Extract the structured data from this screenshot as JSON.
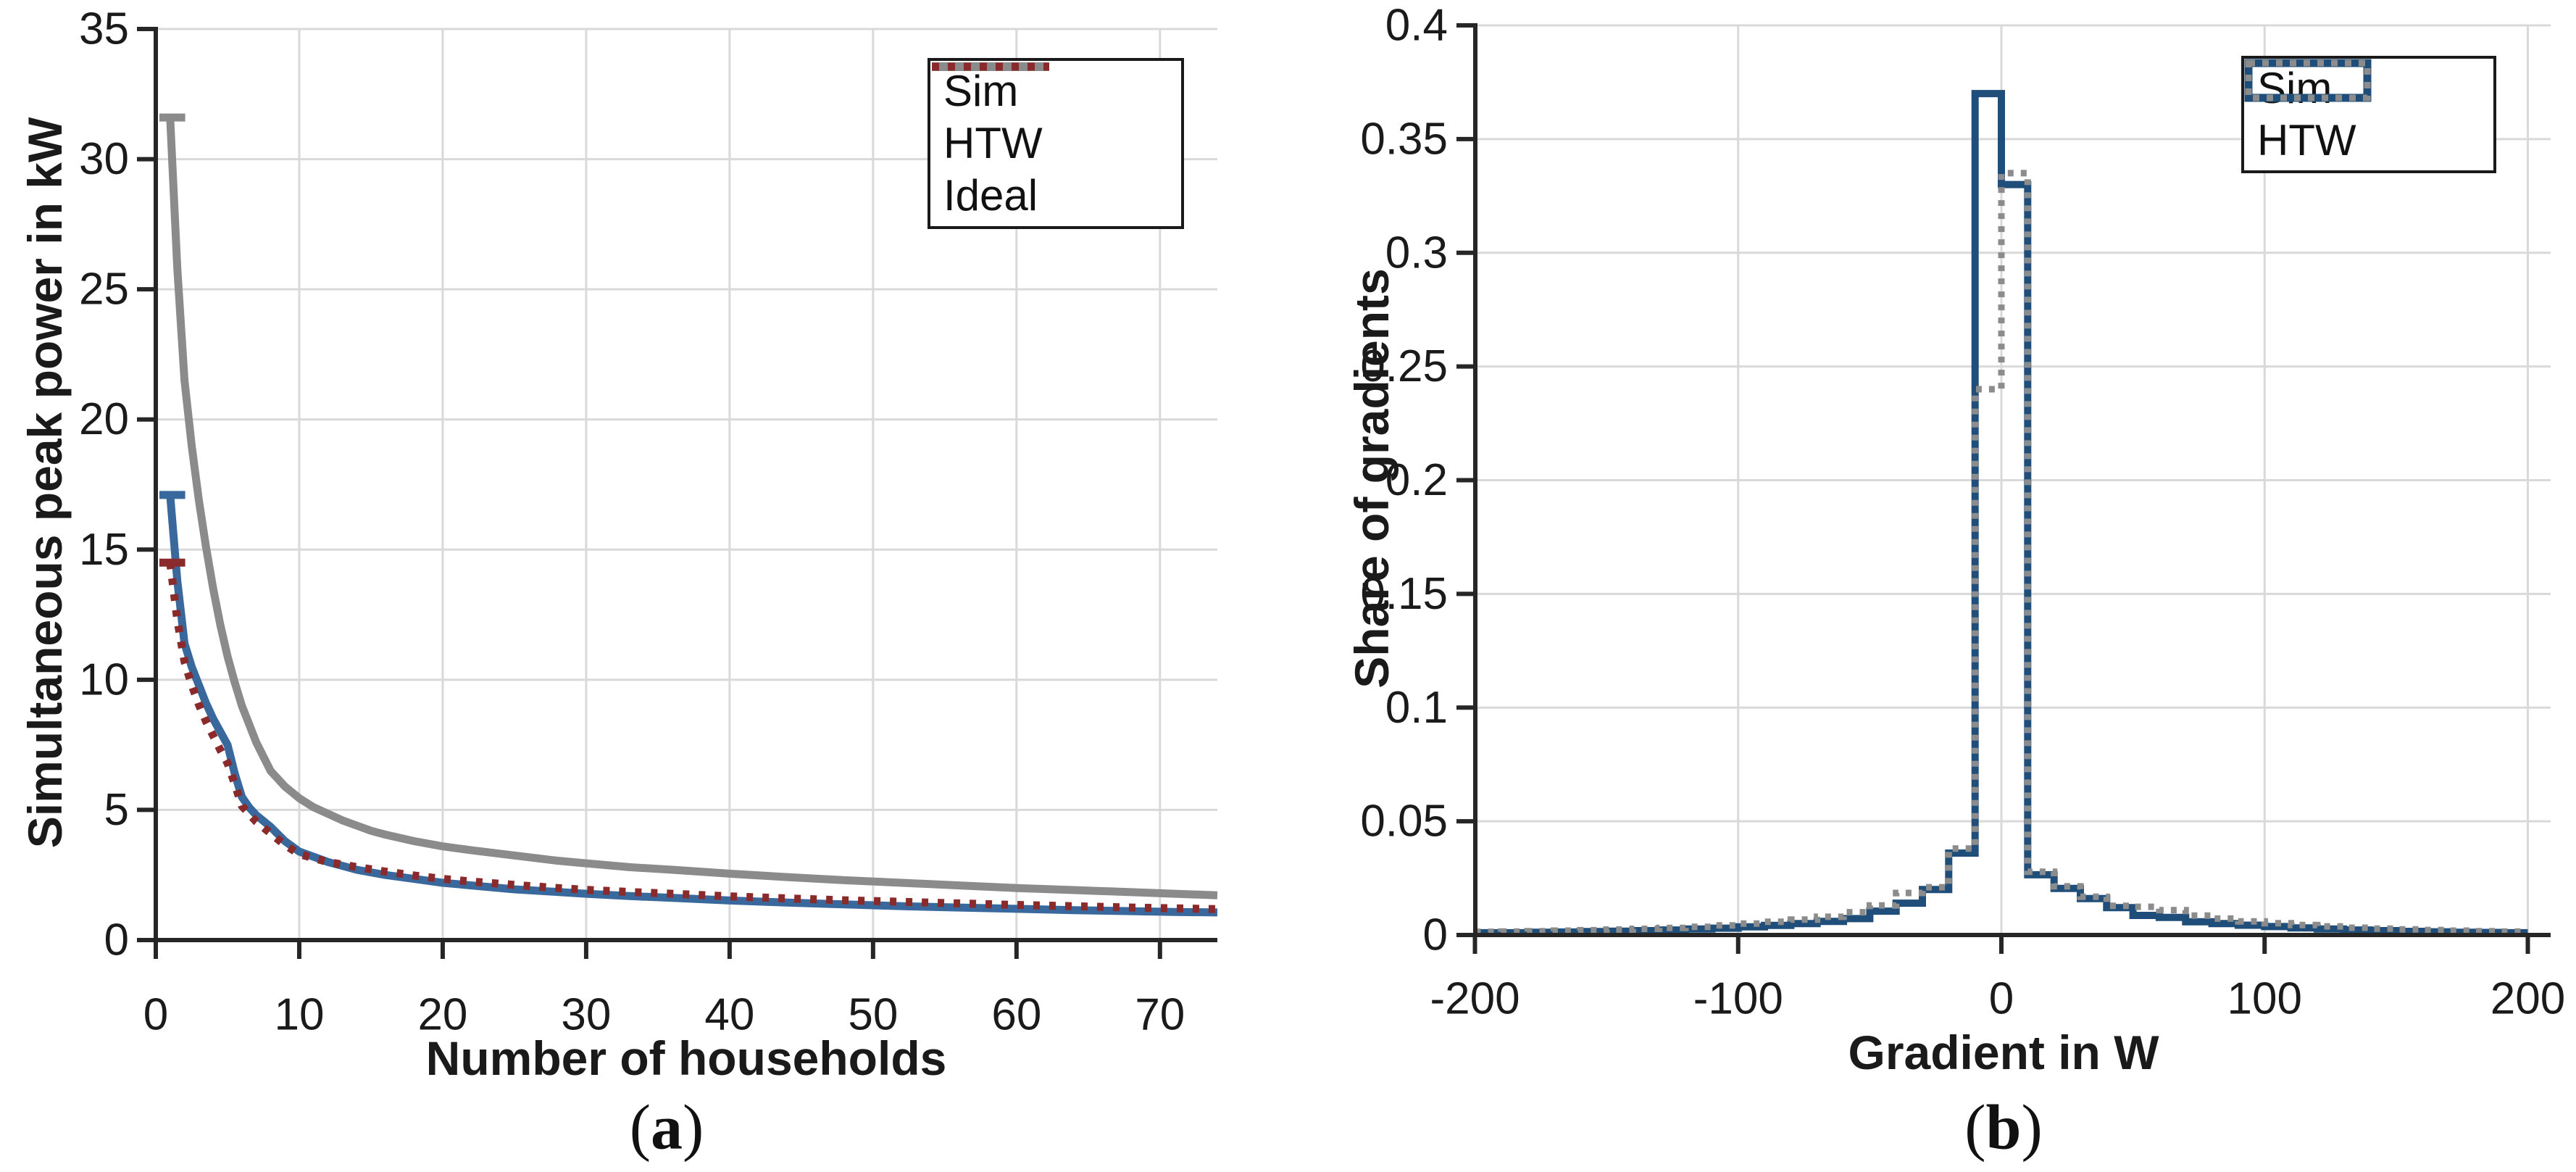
{
  "figure": {
    "background": "#ffffff",
    "grid_color": "#d9d9d9",
    "axis_color": "#262626",
    "text_color": "#1a1a1a",
    "legend_border_color": "#1a1a1a"
  },
  "chart_data": [
    {
      "id": "a",
      "type": "line",
      "title": "",
      "xlabel": "Number of households",
      "ylabel": "Simultaneous peak power in kW",
      "caption": {
        "open": "(",
        "letter": "a",
        "close": ")"
      },
      "xlim": [
        0,
        74
      ],
      "ylim": [
        0,
        35
      ],
      "xticks": [
        0,
        10,
        20,
        30,
        40,
        50,
        60,
        70
      ],
      "yticks": [
        0,
        5,
        10,
        15,
        20,
        25,
        30,
        35
      ],
      "ytick_labels": [
        "0",
        "5",
        "10",
        "15",
        "20",
        "25",
        "30",
        "35"
      ],
      "grid": true,
      "legend_position": "top-right-inside",
      "x": [
        1,
        1.5,
        2,
        2.5,
        3,
        3.5,
        4,
        4.5,
        5,
        5.5,
        6,
        6.5,
        7,
        8,
        9,
        10,
        11,
        12,
        13,
        14,
        15,
        16,
        18,
        20,
        22,
        25,
        28,
        30,
        33,
        36,
        40,
        44,
        48,
        52,
        56,
        60,
        64,
        68,
        71,
        74
      ],
      "series": [
        {
          "name": "Sim",
          "color": "#39689D",
          "style": "solid",
          "start_cap": true,
          "values": [
            17.1,
            13.8,
            11.4,
            10.5,
            9.8,
            9.1,
            8.5,
            8.0,
            7.5,
            6.4,
            5.5,
            5.1,
            4.8,
            4.35,
            3.8,
            3.4,
            3.2,
            3.0,
            2.85,
            2.7,
            2.6,
            2.5,
            2.35,
            2.2,
            2.1,
            1.95,
            1.85,
            1.78,
            1.69,
            1.62,
            1.52,
            1.44,
            1.37,
            1.3,
            1.25,
            1.2,
            1.15,
            1.11,
            1.08,
            1.06
          ]
        },
        {
          "name": "HTW",
          "color": "#8B8B8B",
          "style": "solid",
          "start_cap": true,
          "values": [
            31.6,
            25.8,
            21.5,
            19.0,
            16.9,
            15.1,
            13.5,
            12.1,
            10.9,
            9.9,
            9.0,
            8.3,
            7.6,
            6.5,
            5.9,
            5.45,
            5.1,
            4.85,
            4.6,
            4.4,
            4.2,
            4.05,
            3.8,
            3.6,
            3.45,
            3.25,
            3.05,
            2.95,
            2.8,
            2.7,
            2.55,
            2.42,
            2.3,
            2.2,
            2.1,
            2.0,
            1.92,
            1.84,
            1.78,
            1.72
          ]
        },
        {
          "name": "Ideal",
          "color": "#8B2A2A",
          "style": "dotted",
          "start_cap": true,
          "values": [
            14.5,
            12.3,
            10.7,
            9.8,
            9.05,
            8.4,
            7.85,
            7.3,
            6.8,
            6.0,
            5.15,
            4.85,
            4.55,
            4.1,
            3.65,
            3.3,
            3.15,
            3.0,
            2.9,
            2.8,
            2.72,
            2.63,
            2.48,
            2.35,
            2.25,
            2.12,
            2.0,
            1.93,
            1.85,
            1.78,
            1.68,
            1.6,
            1.53,
            1.47,
            1.41,
            1.35,
            1.3,
            1.25,
            1.22,
            1.19
          ]
        }
      ]
    },
    {
      "id": "b",
      "type": "step-histogram",
      "title": "",
      "xlabel": "Gradient in W",
      "ylabel": "Share of gradients",
      "caption": {
        "open": "(",
        "letter": "b",
        "close": ")"
      },
      "xlim": [
        -200,
        200
      ],
      "ylim": [
        0,
        0.4
      ],
      "xticks": [
        -200,
        -100,
        0,
        100,
        200
      ],
      "xtick_labels": [
        "-200",
        "-100",
        "0",
        "100",
        "200"
      ],
      "gridline_x": [
        -100,
        0,
        100,
        200
      ],
      "yticks": [
        0,
        0.05,
        0.1,
        0.15,
        0.2,
        0.25,
        0.3,
        0.35,
        0.4
      ],
      "ytick_labels": [
        "0",
        "0.05",
        "0.1",
        "0.15",
        "0.2",
        "0.25",
        "0.3",
        "0.35",
        "0.4"
      ],
      "grid": true,
      "legend_position": "top-right-inside",
      "bin_start": -200,
      "bin_width": 10,
      "series": [
        {
          "name": "Sim",
          "color": "#1E4E79",
          "style": "solid",
          "values": [
            0.001,
            0.001,
            0.0012,
            0.0013,
            0.0015,
            0.0017,
            0.0019,
            0.0022,
            0.0026,
            0.003,
            0.0036,
            0.0042,
            0.005,
            0.006,
            0.0072,
            0.0105,
            0.014,
            0.02,
            0.036,
            0.37,
            0.33,
            0.0265,
            0.0205,
            0.016,
            0.012,
            0.0086,
            0.0077,
            0.0058,
            0.005,
            0.0043,
            0.0037,
            0.0031,
            0.0026,
            0.0022,
            0.0019,
            0.0016,
            0.0014,
            0.0012,
            0.0011,
            0.001
          ]
        },
        {
          "name": "HTW",
          "color": "#8C8C8C",
          "style": "dotted",
          "values": [
            0.0014,
            0.0015,
            0.0017,
            0.0019,
            0.0021,
            0.0024,
            0.0027,
            0.0031,
            0.0036,
            0.0042,
            0.005,
            0.0058,
            0.0068,
            0.008,
            0.01,
            0.013,
            0.0185,
            0.021,
            0.038,
            0.24,
            0.335,
            0.0278,
            0.0214,
            0.0168,
            0.0128,
            0.0124,
            0.0109,
            0.0085,
            0.0072,
            0.006,
            0.0052,
            0.0044,
            0.0038,
            0.0032,
            0.0028,
            0.0025,
            0.0022,
            0.0019,
            0.0017,
            0.0015
          ]
        }
      ]
    }
  ]
}
